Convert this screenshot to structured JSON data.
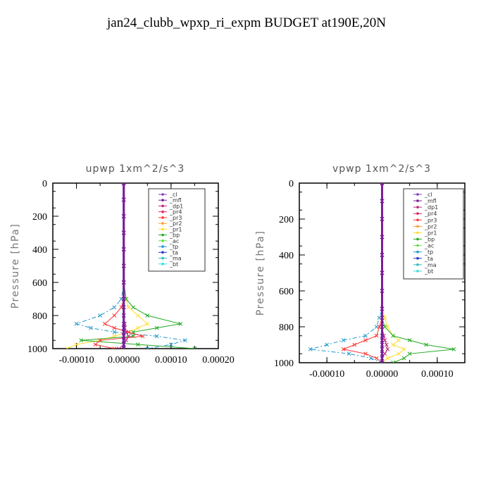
{
  "title": "jan24_clubb_wpxp_ri_expm  BUDGET at190E,20N",
  "legend_labels": [
    "_cl",
    "_mfl",
    "_dp1",
    "_pr4",
    "_pr3",
    "_pr2",
    "_pr1",
    "_bp",
    "_ac",
    "_tp",
    "_ta",
    "_ma",
    "_bt"
  ],
  "colors": {
    "_cl": "#7f3fbf",
    "_mfl": "#7a1f9a",
    "_dp1": "#c0287a",
    "_pr4": "#e0245e",
    "_pr3": "#ff3333",
    "_pr2": "#ff9933",
    "_pr1": "#ffdd33",
    "_bp": "#22aa22",
    "_ac": "#66dd44",
    "_tp": "#2299cc",
    "_ta": "#2233cc",
    "_ma": "#33bbbb",
    "_bt": "#33dddd"
  },
  "chart_data": [
    {
      "type": "line",
      "title": "upwp  1xm^2/s^3",
      "ylabel": "Pressure [hPa]",
      "xlabel": "",
      "xlim": [
        -0.00015,
        0.0002
      ],
      "ylim": [
        1000,
        0
      ],
      "xticks": [
        "-0.00010",
        "0.00000",
        "0.00010",
        "0.00020"
      ],
      "xtick_values": [
        -0.0001,
        0,
        0.0001,
        0.0002
      ],
      "yticks": [
        "0",
        "200",
        "400",
        "600",
        "800",
        "1000"
      ],
      "legend_position": "top-right",
      "pressure": [
        0,
        100,
        200,
        300,
        400,
        500,
        600,
        700,
        750,
        800,
        850,
        875,
        900,
        925,
        950,
        975,
        1000
      ],
      "series": [
        {
          "name": "_pr1",
          "values": [
            0,
            0,
            0,
            0,
            0,
            0,
            0,
            5e-06,
            1e-05,
            3e-05,
            5e-05,
            3e-05,
            1e-05,
            -2e-05,
            -5e-05,
            -0.0001,
            -0.00012
          ]
        },
        {
          "name": "_bp",
          "values": [
            0,
            0,
            0,
            0,
            0,
            0,
            0,
            5e-06,
            2e-05,
            5e-05,
            0.00012,
            7e-05,
            2e-05,
            2e-05,
            -9e-05,
            3e-05,
            0.00015
          ]
        },
        {
          "name": "_tp",
          "values": [
            0,
            0,
            0,
            0,
            0,
            0,
            0,
            -5e-06,
            -2e-05,
            -5e-05,
            -0.0001,
            -7e-05,
            -2e-05,
            7e-05,
            0.00013,
            0.0001,
            5e-05
          ]
        },
        {
          "name": "_pr3",
          "values": [
            0,
            0,
            0,
            0,
            0,
            0,
            0,
            0,
            -5e-06,
            -2e-05,
            -4e-05,
            -2e-05,
            1e-05,
            4e-05,
            -5e-05,
            -6e-05,
            -2e-05
          ]
        },
        {
          "name": "_dp1",
          "values": [
            0,
            0,
            0,
            0,
            0,
            0,
            0,
            0,
            0,
            0,
            2e-06,
            2e-06,
            5e-06,
            1e-05,
            5e-06,
            0,
            -1e-05
          ]
        },
        {
          "name": "_cl",
          "values": [
            0,
            0,
            0,
            0,
            0,
            0,
            0,
            0,
            0,
            0,
            0,
            0,
            0,
            0,
            0,
            0,
            0
          ]
        },
        {
          "name": "_mfl",
          "values": [
            0,
            0,
            0,
            0,
            0,
            0,
            0,
            0,
            0,
            0,
            0,
            0,
            0,
            0,
            0,
            0,
            0
          ]
        }
      ]
    },
    {
      "type": "line",
      "title": "vpwp  1xm^2/s^3",
      "ylabel": "Pressure [hPa]",
      "xlabel": "",
      "xlim": [
        -0.00015,
        0.00015
      ],
      "ylim": [
        1000,
        0
      ],
      "xticks": [
        "-0.00010",
        "0.00000",
        "0.00010"
      ],
      "xtick_values": [
        -0.0001,
        0,
        0.0001
      ],
      "yticks": [
        "0",
        "200",
        "400",
        "600",
        "800",
        "1000"
      ],
      "legend_position": "top-right",
      "pressure": [
        0,
        100,
        200,
        300,
        400,
        500,
        600,
        700,
        750,
        800,
        850,
        875,
        900,
        925,
        950,
        975,
        1000
      ],
      "series": [
        {
          "name": "_pr1",
          "values": [
            0,
            0,
            0,
            0,
            0,
            0,
            0,
            0,
            5e-06,
            1e-05,
            2e-05,
            3e-05,
            2e-05,
            4e-05,
            3e-05,
            1e-05,
            0
          ]
        },
        {
          "name": "_bp",
          "values": [
            0,
            0,
            0,
            0,
            0,
            0,
            0,
            0,
            0,
            5e-06,
            2e-05,
            5e-05,
            8e-05,
            0.00013,
            5e-05,
            4e-05,
            2e-05
          ]
        },
        {
          "name": "_tp",
          "values": [
            0,
            0,
            0,
            0,
            0,
            0,
            0,
            0,
            -5e-06,
            -1e-05,
            -3e-05,
            -7e-05,
            -0.0001,
            -0.00013,
            -6e-05,
            -2e-05,
            0
          ]
        },
        {
          "name": "_pr3",
          "values": [
            0,
            0,
            0,
            0,
            0,
            0,
            0,
            0,
            0,
            -5e-06,
            -1e-05,
            -3e-05,
            -5e-05,
            -7e-05,
            -3e-05,
            -1e-05,
            0
          ]
        },
        {
          "name": "_dp1",
          "values": [
            0,
            0,
            0,
            0,
            0,
            0,
            0,
            0,
            0,
            0,
            3e-06,
            5e-06,
            8e-06,
            1e-05,
            5e-06,
            0,
            0
          ]
        },
        {
          "name": "_cl",
          "values": [
            0,
            0,
            0,
            0,
            0,
            0,
            0,
            0,
            0,
            0,
            0,
            0,
            0,
            0,
            0,
            0,
            0
          ]
        },
        {
          "name": "_mfl",
          "values": [
            0,
            0,
            0,
            0,
            0,
            0,
            0,
            0,
            0,
            0,
            0,
            0,
            0,
            0,
            0,
            0,
            0
          ]
        }
      ]
    }
  ]
}
